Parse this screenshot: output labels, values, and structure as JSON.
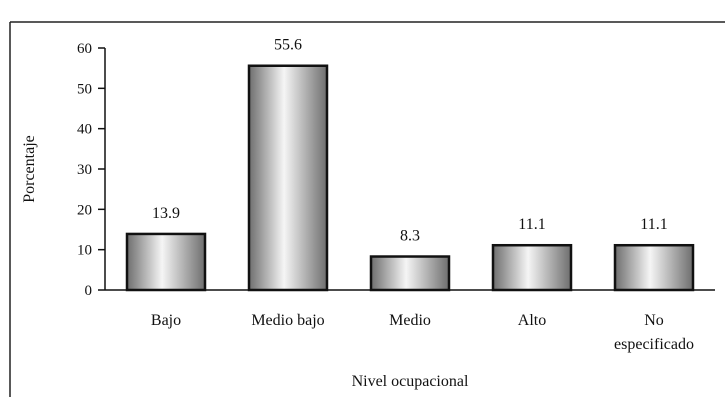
{
  "chart_data": {
    "type": "bar",
    "title": "",
    "xlabel": "Nivel ocupacional",
    "ylabel": "Porcentaje",
    "categories": [
      "Bajo",
      "Medio bajo",
      "Medio",
      "Alto",
      "No especificado"
    ],
    "category_lines": [
      [
        "Bajo"
      ],
      [
        "Medio bajo"
      ],
      [
        "Medio"
      ],
      [
        "Alto"
      ],
      [
        "No",
        "especificado"
      ]
    ],
    "values": [
      13.9,
      55.6,
      8.3,
      11.1,
      11.1
    ],
    "value_labels": [
      "13.9",
      "55.6",
      "8.3",
      "11.1",
      "11.1"
    ],
    "ylim": [
      0,
      60
    ],
    "yticks": [
      0,
      10,
      20,
      30,
      40,
      50,
      60
    ],
    "grid": false,
    "legend": "none",
    "bar_fill": "gradient-gray",
    "colors": {
      "bar_dark": "#6e6e6e",
      "bar_light": "#f5f5f5",
      "outline": "#111111"
    }
  }
}
